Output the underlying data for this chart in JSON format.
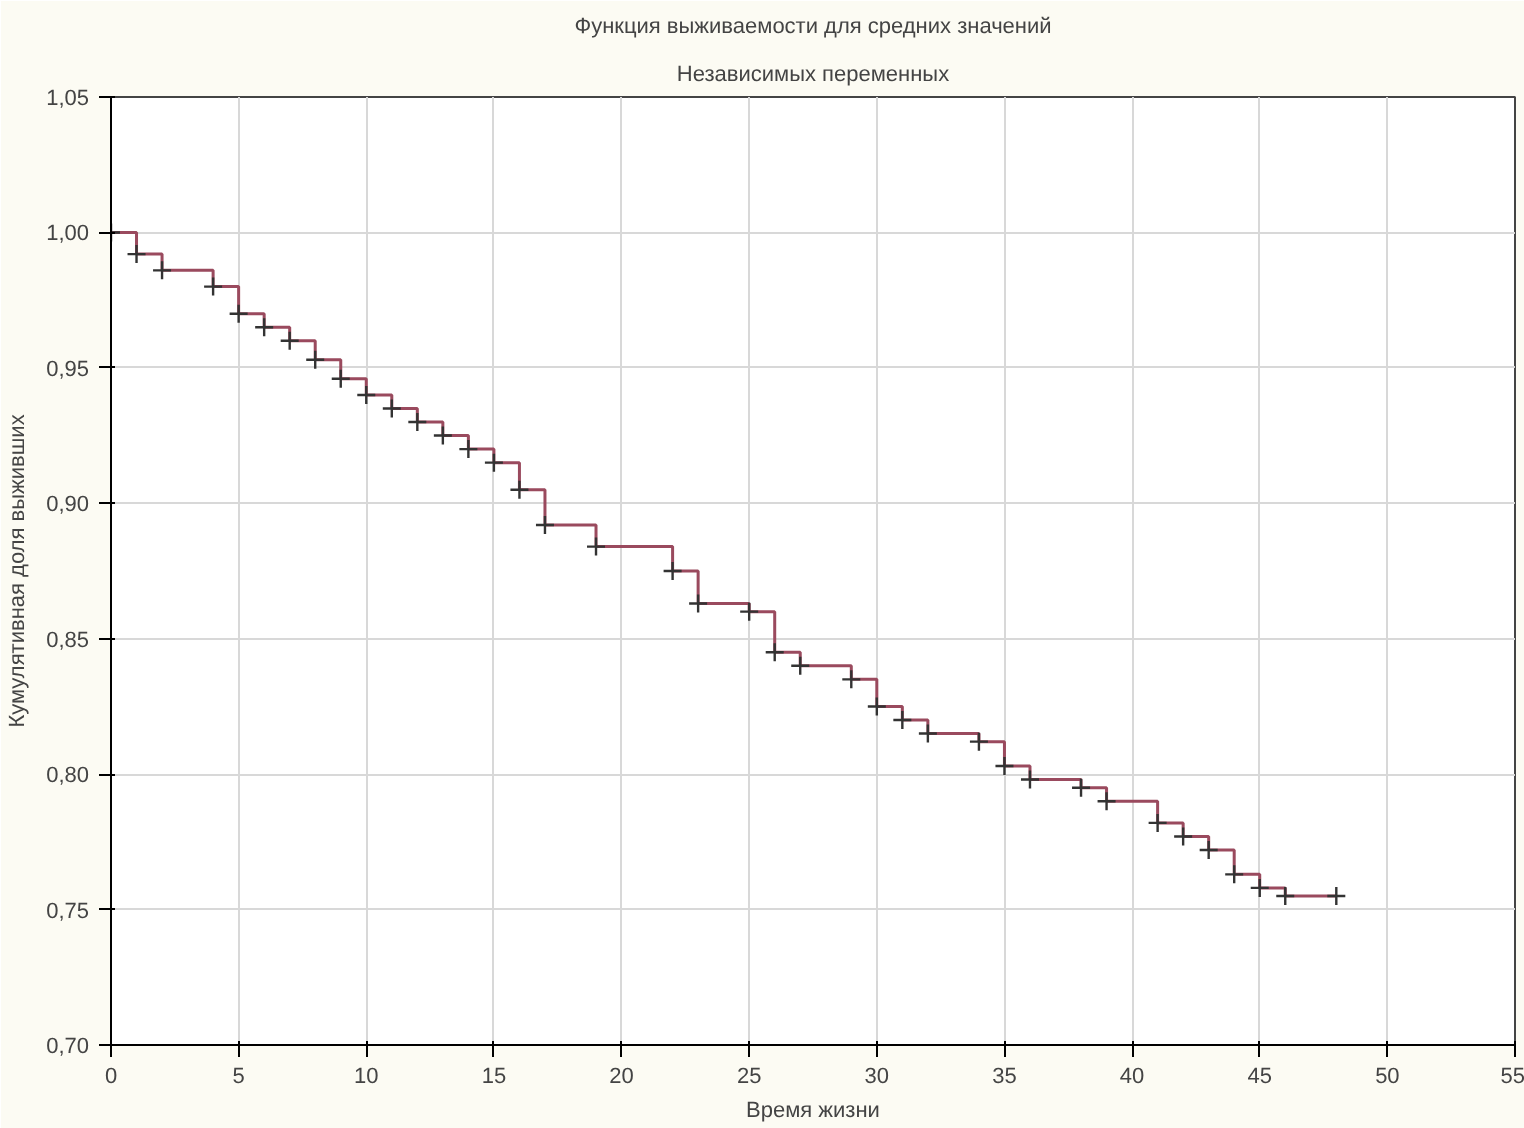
{
  "chart_data": {
    "type": "step",
    "title": "Функция выживаемости для средних значений",
    "subtitle": "Независимых переменных",
    "xlabel": "Время жизни",
    "ylabel": "Кумулятивная доля выживших",
    "x": [
      0,
      1,
      2,
      4,
      5,
      6,
      7,
      8,
      9,
      10,
      11,
      12,
      13,
      14,
      15,
      16,
      17,
      19,
      22,
      23,
      25,
      26,
      27,
      29,
      30,
      31,
      32,
      34,
      35,
      36,
      38,
      39,
      41,
      42,
      43,
      44,
      45,
      46,
      48
    ],
    "series": [
      {
        "color": "#9a4a5e",
        "values": [
          1.0,
          0.992,
          0.986,
          0.98,
          0.97,
          0.965,
          0.96,
          0.953,
          0.946,
          0.94,
          0.935,
          0.93,
          0.925,
          0.92,
          0.915,
          0.905,
          0.892,
          0.884,
          0.875,
          0.863,
          0.86,
          0.845,
          0.84,
          0.835,
          0.825,
          0.82,
          0.815,
          0.812,
          0.803,
          0.798,
          0.795,
          0.79,
          0.782,
          0.777,
          0.772,
          0.763,
          0.758,
          0.755,
          0.755
        ]
      }
    ],
    "xlim": [
      0,
      55
    ],
    "xticks": [
      0,
      5,
      10,
      15,
      20,
      25,
      30,
      35,
      40,
      45,
      50,
      55
    ],
    "ylim": [
      0.7,
      1.05
    ],
    "yticks": [
      {
        "value": 0.7,
        "label": "0,70"
      },
      {
        "value": 0.75,
        "label": "0,75"
      },
      {
        "value": 0.8,
        "label": "0,80"
      },
      {
        "value": 0.85,
        "label": "0,85"
      },
      {
        "value": 0.9,
        "label": "0,90"
      },
      {
        "value": 0.95,
        "label": "0,95"
      },
      {
        "value": 1.0,
        "label": "1,00"
      },
      {
        "value": 1.05,
        "label": "1,05"
      }
    ],
    "grid": true,
    "marker": "cross",
    "line_style": "solid"
  }
}
